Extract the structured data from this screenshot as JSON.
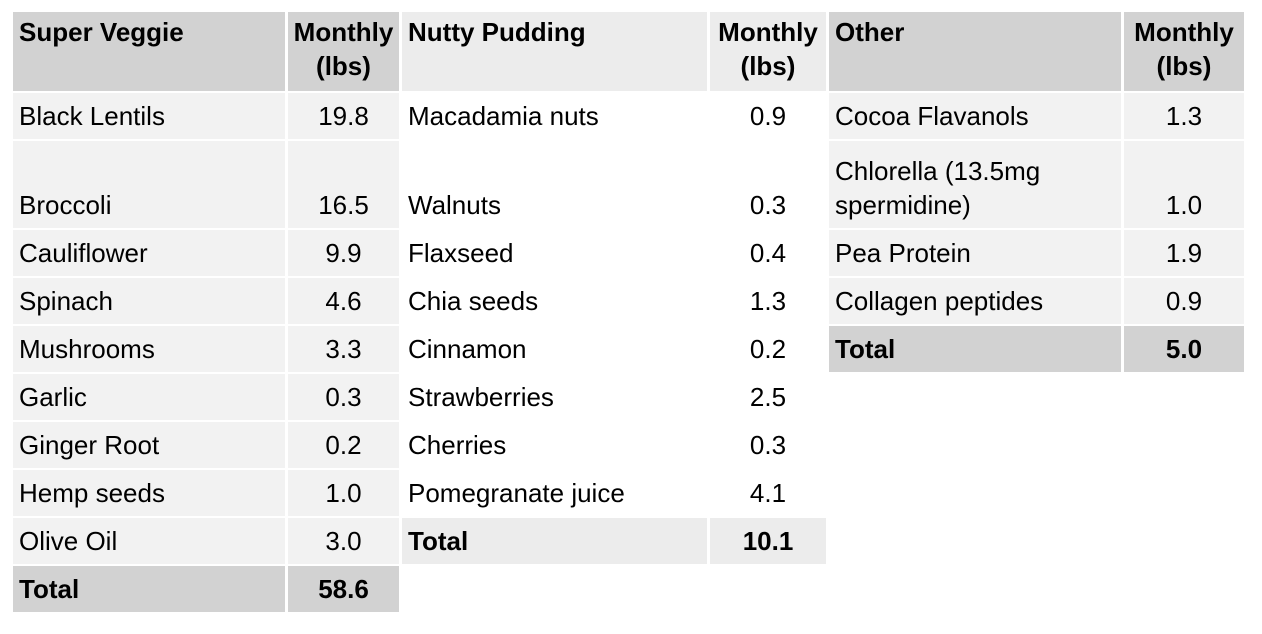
{
  "colors": {
    "header_dark": "#d2d2d2",
    "header_mid": "#ececec",
    "row_light": "#f2f2f2",
    "row_white": "#ffffff",
    "text": "#000000",
    "background": "#ffffff"
  },
  "groups": [
    {
      "id": "super-veggie",
      "name_header": "Super Veggie",
      "amount_header": "Monthly (lbs)",
      "shade": "dark",
      "items": [
        {
          "name": "Black Lentils",
          "amount": "19.8"
        },
        {
          "name": "Broccoli",
          "amount": "16.5"
        },
        {
          "name": "Cauliflower",
          "amount": "9.9"
        },
        {
          "name": "Spinach",
          "amount": "4.6"
        },
        {
          "name": "Mushrooms",
          "amount": "3.3"
        },
        {
          "name": "Garlic",
          "amount": "0.3"
        },
        {
          "name": "Ginger Root",
          "amount": "0.2"
        },
        {
          "name": "Hemp seeds",
          "amount": "1.0"
        },
        {
          "name": "Olive Oil",
          "amount": "3.0"
        }
      ],
      "total": {
        "label": "Total",
        "amount": "58.6"
      }
    },
    {
      "id": "nutty-pudding",
      "name_header": "Nutty Pudding",
      "amount_header": "Monthly (lbs)",
      "shade": "light",
      "items": [
        {
          "name": "Macadamia nuts",
          "amount": "0.9"
        },
        {
          "name": "Walnuts",
          "amount": "0.3"
        },
        {
          "name": "Flaxseed",
          "amount": "0.4"
        },
        {
          "name": "Chia seeds",
          "amount": "1.3"
        },
        {
          "name": "Cinnamon",
          "amount": "0.2"
        },
        {
          "name": "Strawberries",
          "amount": "2.5"
        },
        {
          "name": "Cherries",
          "amamount_unused": "",
          "amount": "0.3"
        },
        {
          "name": "Pomegranate juice",
          "amount": "4.1"
        }
      ],
      "total": {
        "label": "Total",
        "amount": "10.1"
      }
    },
    {
      "id": "other",
      "name_header": "Other",
      "amount_header": "Monthly (lbs)",
      "shade": "dark",
      "items": [
        {
          "name": "Cocoa Flavanols",
          "amount": "1.3"
        },
        {
          "name": "Chlorella (13.5mg spermidine)",
          "amount": "1.0"
        },
        {
          "name": "Pea Protein",
          "amount": "1.9"
        },
        {
          "name": "Collagen peptides",
          "amount": "0.9"
        }
      ],
      "total": {
        "label": "Total",
        "amount": "5.0"
      }
    }
  ]
}
